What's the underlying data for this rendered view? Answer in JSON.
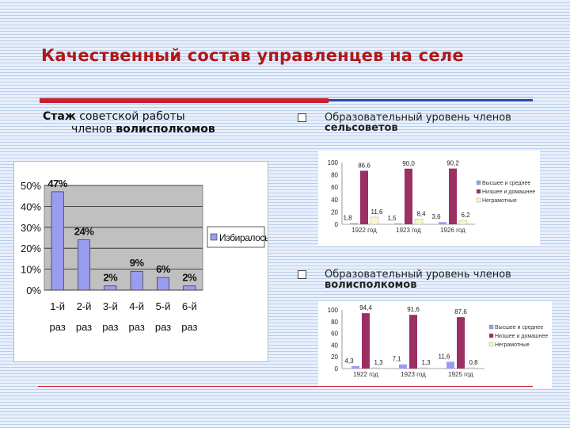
{
  "title": "Качественный состав управленцев на селе",
  "left_heading": {
    "w1": "Стаж",
    "w2": "советской работы",
    "w3": "членов",
    "w4": "волисполкомов"
  },
  "right_heading_1": {
    "l1": "Образовательный уровень членов",
    "l2": "сельсоветов"
  },
  "right_heading_2": {
    "l1": "Образовательный уровень членов",
    "l2": "волисполкомов"
  },
  "colors": {
    "title": "#b01818",
    "bar_blue": "#9a9cf2",
    "bar_maroon": "#9c2f63",
    "bar_cream": "#fbf8c6",
    "rule_red": "#c8202f",
    "rule_blue": "#2b4aa6"
  },
  "chart_data": [
    {
      "type": "bar",
      "categories": [
        "1-й раз",
        "2-й раз",
        "3-й раз",
        "4-й раз",
        "5-й раз",
        "6-й раз"
      ],
      "values": [
        47,
        24,
        2,
        9,
        6,
        2
      ],
      "value_labels": [
        "47%",
        "24%",
        "2%",
        "9%",
        "6%",
        "2%"
      ],
      "y_ticks": [
        "50%",
        "40%",
        "30%",
        "20%",
        "10%",
        "0%"
      ],
      "ylim": [
        0,
        50
      ],
      "series": [
        {
          "name": "Избиралось",
          "values": [
            47,
            24,
            2,
            9,
            6,
            2
          ]
        }
      ],
      "legend": "right",
      "grid": true
    },
    {
      "type": "bar",
      "categories": [
        "1922 год",
        "1923 год",
        "1926 год"
      ],
      "y_ticks": [
        "100",
        "80",
        "60",
        "40",
        "20",
        "0"
      ],
      "ylim": [
        0,
        100
      ],
      "series": [
        {
          "name": "Высшее и среднее",
          "values": [
            1.8,
            1.5,
            3.6
          ],
          "labels": [
            "1,8",
            "1,5",
            "3,6"
          ]
        },
        {
          "name": "Низшее и домашнее",
          "values": [
            86.6,
            90.0,
            90.2
          ],
          "labels": [
            "86,6",
            "90,0",
            "90,2"
          ]
        },
        {
          "name": "Неграмотные",
          "values": [
            11.6,
            8.4,
            6.2
          ],
          "labels": [
            "11,6",
            "8,4",
            "6,2"
          ]
        }
      ],
      "legend": "right"
    },
    {
      "type": "bar",
      "categories": [
        "1922 год",
        "1923 год",
        "1925 год"
      ],
      "y_ticks": [
        "100",
        "80",
        "60",
        "40",
        "20",
        "0"
      ],
      "ylim": [
        0,
        100
      ],
      "series": [
        {
          "name": "Высшее и среднее",
          "values": [
            4.3,
            7.1,
            11.6
          ],
          "labels": [
            "4,3",
            "7,1",
            "11,6"
          ]
        },
        {
          "name": "Низшее и домашнее",
          "values": [
            94.4,
            91.6,
            87.6
          ],
          "labels": [
            "94,4",
            "91,6",
            "87,6"
          ]
        },
        {
          "name": "Неграмотные",
          "values": [
            1.3,
            1.3,
            0.8
          ],
          "labels": [
            "1,3",
            "1,3",
            "0,8"
          ]
        }
      ],
      "legend": "right"
    }
  ]
}
